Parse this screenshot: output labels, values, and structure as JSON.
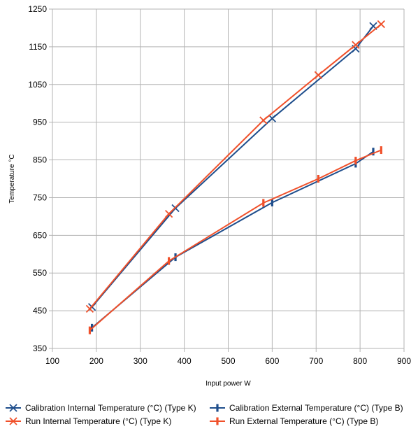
{
  "chart_data": {
    "type": "line",
    "xlabel": "Input power W",
    "ylabel": "Temperature °C",
    "xlim": [
      100,
      900
    ],
    "ylim": [
      350,
      1250
    ],
    "x_ticks": [
      100,
      200,
      300,
      400,
      500,
      600,
      700,
      800,
      900
    ],
    "y_ticks": [
      350,
      450,
      550,
      650,
      750,
      850,
      950,
      1050,
      1150,
      1250
    ],
    "grid": true,
    "legend_position": "bottom",
    "series": [
      {
        "name": "Calibration Internal Temperature (°C) (Type K)",
        "color": "#1f4e8c",
        "marker": "x",
        "points": [
          [
            190,
            460
          ],
          [
            380,
            722
          ],
          [
            600,
            960
          ],
          [
            790,
            1145
          ],
          [
            830,
            1205
          ]
        ]
      },
      {
        "name": "Calibration External Temperature (°C) (Type B)",
        "color": "#1f4e8c",
        "marker": "bar",
        "points": [
          [
            190,
            405
          ],
          [
            380,
            592
          ],
          [
            600,
            737
          ],
          [
            790,
            840
          ],
          [
            830,
            872
          ]
        ]
      },
      {
        "name": "Run Internal Temperature (°C) (Type K)",
        "color": "#f0502a",
        "marker": "x",
        "points": [
          [
            185,
            455
          ],
          [
            365,
            707
          ],
          [
            580,
            955
          ],
          [
            705,
            1075
          ],
          [
            790,
            1155
          ],
          [
            848,
            1210
          ]
        ]
      },
      {
        "name": "Run External Temperature (°C) (Type B)",
        "color": "#f0502a",
        "marker": "bar",
        "points": [
          [
            185,
            398
          ],
          [
            365,
            582
          ],
          [
            580,
            736
          ],
          [
            705,
            800
          ],
          [
            790,
            848
          ],
          [
            848,
            876
          ]
        ]
      }
    ]
  }
}
